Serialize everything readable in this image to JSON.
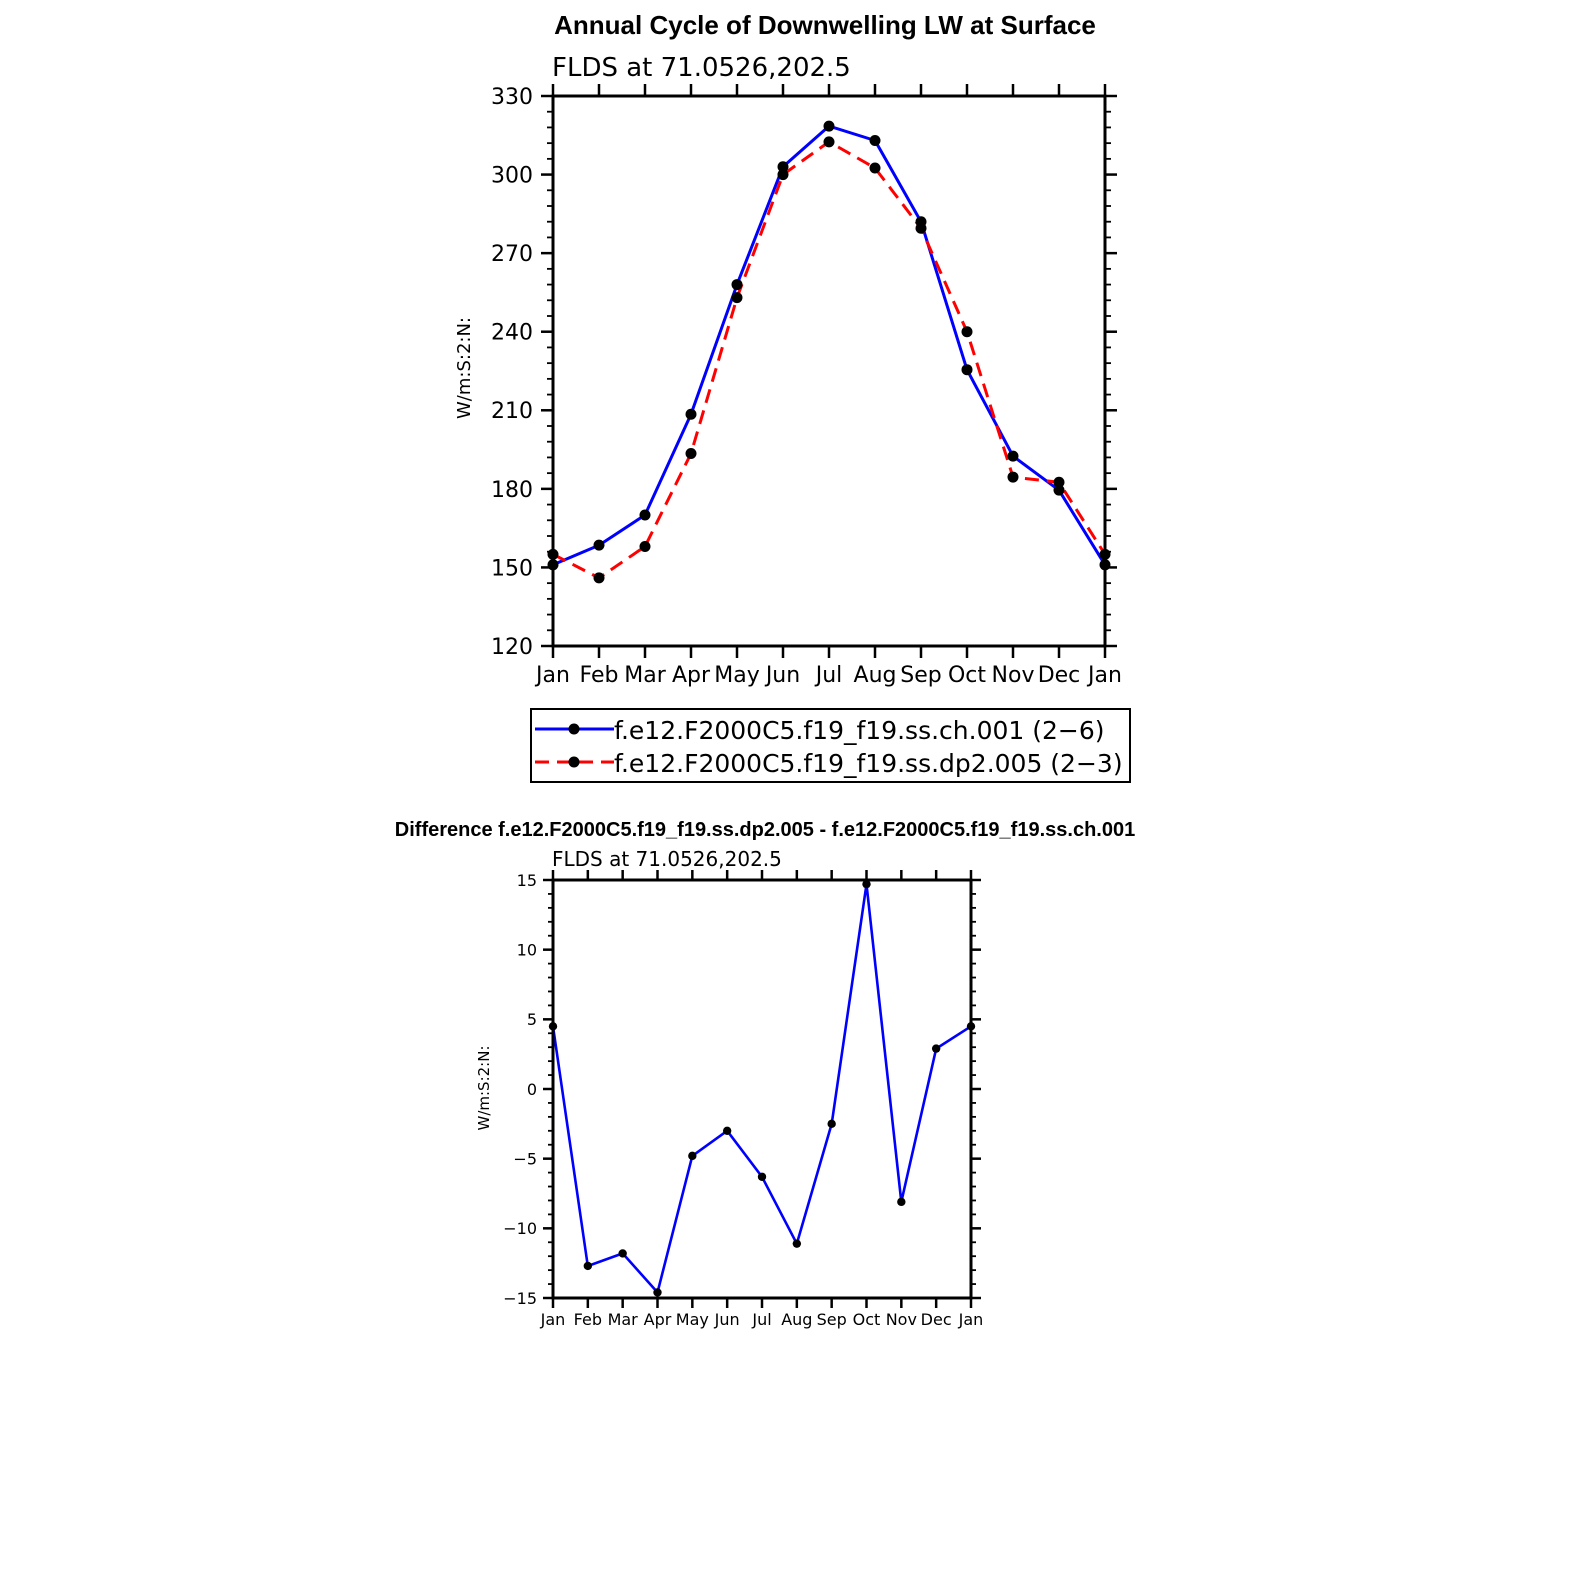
{
  "chart_data": [
    {
      "type": "line",
      "title": "Annual Cycle of Downwelling LW at Surface",
      "subtitle": "FLDS at 71.0526,202.5",
      "ylabel": "W/m:S:2:N:",
      "xlabel": "",
      "categories": [
        "Jan",
        "Feb",
        "Mar",
        "Apr",
        "May",
        "Jun",
        "Jul",
        "Aug",
        "Sep",
        "Oct",
        "Nov",
        "Dec",
        "Jan"
      ],
      "ylim": [
        120,
        330
      ],
      "yticks": [
        120,
        150,
        180,
        210,
        240,
        270,
        300,
        330
      ],
      "grid": false,
      "legend_position": "bottom",
      "series": [
        {
          "name": "f.e12.F2000C5.f19_f19.ss.ch.001 (2−6)",
          "color": "#0000ff",
          "dash": "solid",
          "values": [
            151,
            158.5,
            170,
            208.5,
            258,
            303,
            318.5,
            313,
            282,
            225.5,
            192.5,
            179.5,
            151
          ]
        },
        {
          "name": "f.e12.F2000C5.f19_f19.ss.dp2.005 (2−3)",
          "color": "#ff0000",
          "dash": "dashed",
          "values": [
            155,
            146,
            158,
            193.5,
            253,
            300,
            312.5,
            302.5,
            279.5,
            240,
            184.5,
            182.5,
            155
          ]
        }
      ]
    },
    {
      "type": "line",
      "title": "Difference f.e12.F2000C5.f19_f19.ss.dp2.005 - f.e12.F2000C5.f19_f19.ss.ch.001",
      "subtitle": "FLDS at 71.0526,202.5",
      "ylabel": "W/m:S:2:N:",
      "xlabel": "",
      "categories": [
        "Jan",
        "Feb",
        "Mar",
        "Apr",
        "May",
        "Jun",
        "Jul",
        "Aug",
        "Sep",
        "Oct",
        "Nov",
        "Dec",
        "Jan"
      ],
      "ylim": [
        -15,
        15
      ],
      "yticks": [
        -15,
        -10,
        -5,
        0,
        5,
        10,
        15
      ],
      "grid": false,
      "series": [
        {
          "color": "#0000ff",
          "dash": "solid",
          "values": [
            4.5,
            -12.7,
            -11.8,
            -14.6,
            -4.8,
            -3.0,
            -6.3,
            -11.1,
            -2.5,
            14.7,
            -8.1,
            2.9,
            4.5
          ]
        }
      ]
    }
  ]
}
